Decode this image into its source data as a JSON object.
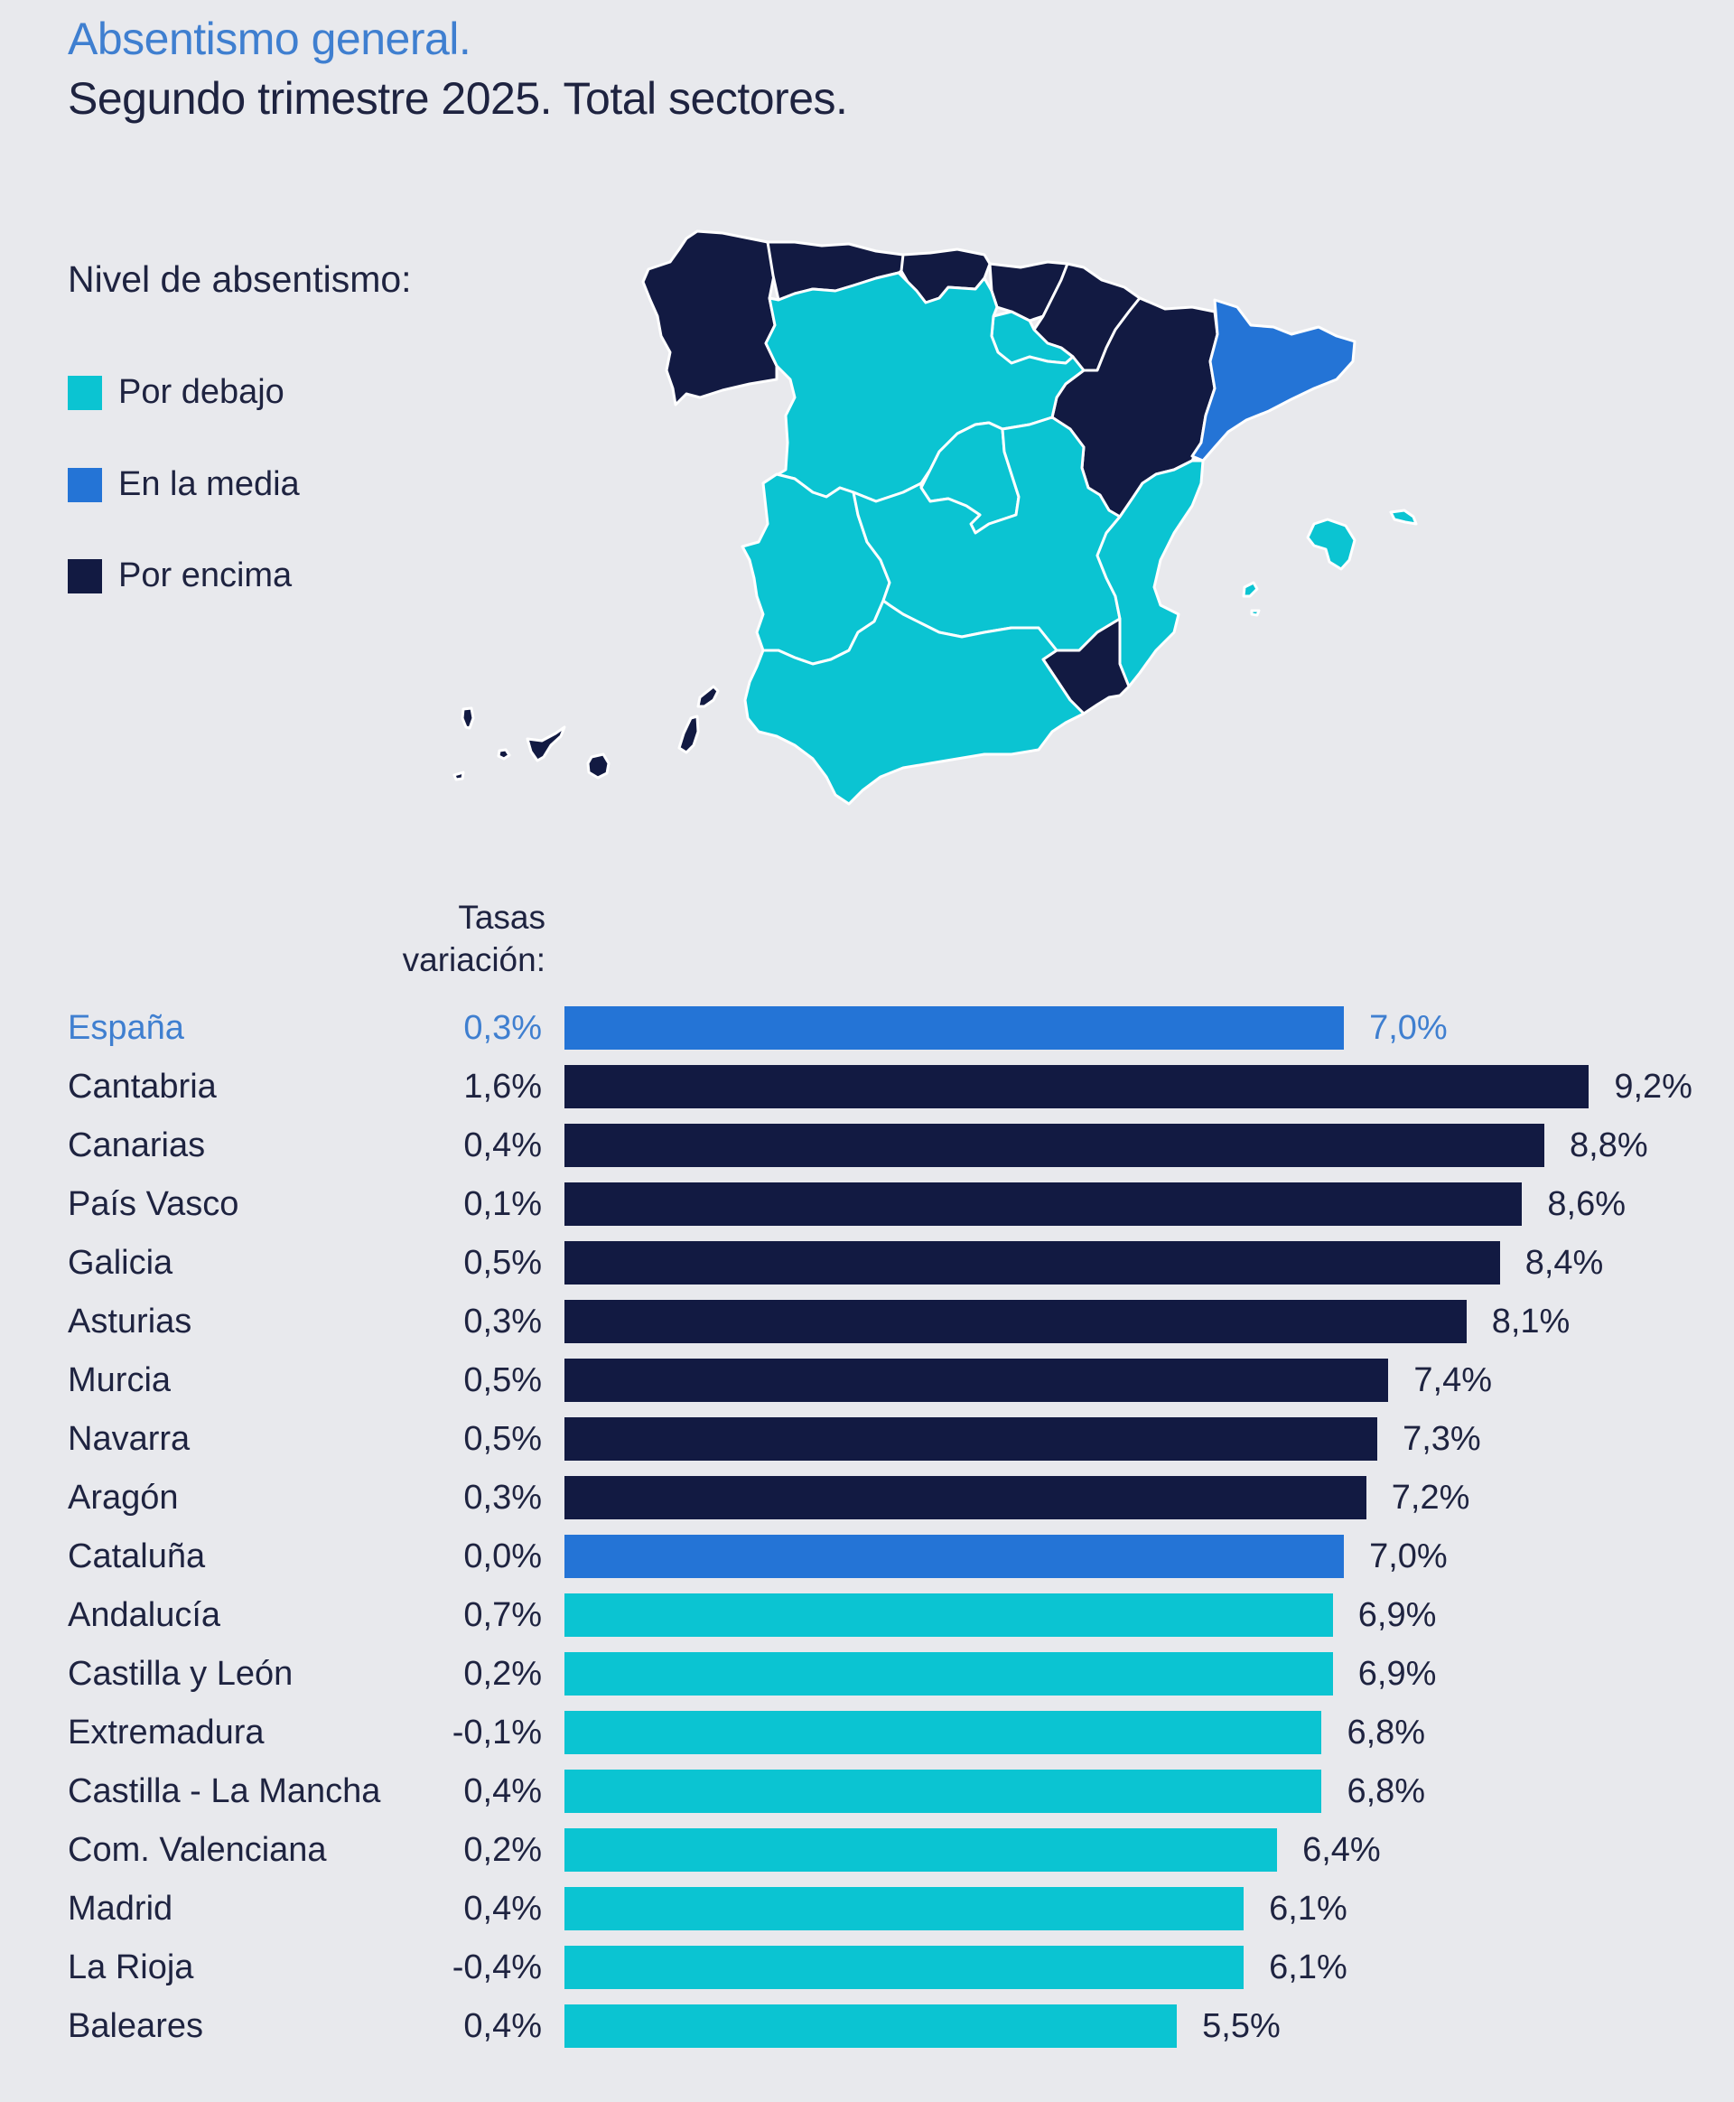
{
  "header": {
    "title": "Absentismo general.",
    "subtitle": "Segundo trimestre 2025. Total sectores."
  },
  "legend": {
    "title": "Nivel de absentismo:",
    "items": [
      {
        "key": "below",
        "label": "Por debajo",
        "color": "#0BC4D2"
      },
      {
        "key": "average",
        "label": "En la media",
        "color": "#2474D6"
      },
      {
        "key": "above",
        "label": "Por encima",
        "color": "#121A42"
      }
    ]
  },
  "colors": {
    "below": "#0BC4D2",
    "average": "#2474D6",
    "above": "#121A42",
    "highlight_text": "#3F7FD0",
    "background": "#E8E9ED"
  },
  "map": {
    "regions": [
      {
        "name": "Galicia",
        "level": "above"
      },
      {
        "name": "Asturias",
        "level": "above"
      },
      {
        "name": "Cantabria",
        "level": "above"
      },
      {
        "name": "País Vasco",
        "level": "above"
      },
      {
        "name": "Navarra",
        "level": "above"
      },
      {
        "name": "Aragón",
        "level": "above"
      },
      {
        "name": "Cataluña",
        "level": "average"
      },
      {
        "name": "La Rioja",
        "level": "below"
      },
      {
        "name": "Castilla y León",
        "level": "below"
      },
      {
        "name": "Madrid",
        "level": "below"
      },
      {
        "name": "Castilla - La Mancha",
        "level": "below"
      },
      {
        "name": "Extremadura",
        "level": "below"
      },
      {
        "name": "Com. Valenciana",
        "level": "below"
      },
      {
        "name": "Andalucía",
        "level": "below"
      },
      {
        "name": "Murcia",
        "level": "above"
      },
      {
        "name": "Baleares",
        "level": "below"
      },
      {
        "name": "Canarias",
        "level": "above"
      }
    ]
  },
  "chart_data": {
    "type": "bar",
    "orientation": "horizontal",
    "title": "Absentismo general. Segundo trimestre 2025. Total sectores.",
    "variation_header": "Tasas variación:",
    "xlabel": "",
    "ylabel": "",
    "xlim": [
      0,
      9.2
    ],
    "grid": false,
    "legend_position": "top-left",
    "unit": "%",
    "rows": [
      {
        "region": "España",
        "rate": 7.0,
        "rate_label": "7,0%",
        "variation": 0.3,
        "variation_label": "0,3%",
        "level": "average",
        "highlight": true
      },
      {
        "region": "Cantabria",
        "rate": 9.2,
        "rate_label": "9,2%",
        "variation": 1.6,
        "variation_label": "1,6%",
        "level": "above"
      },
      {
        "region": "Canarias",
        "rate": 8.8,
        "rate_label": "8,8%",
        "variation": 0.4,
        "variation_label": "0,4%",
        "level": "above"
      },
      {
        "region": "País Vasco",
        "rate": 8.6,
        "rate_label": "8,6%",
        "variation": 0.1,
        "variation_label": "0,1%",
        "level": "above"
      },
      {
        "region": "Galicia",
        "rate": 8.4,
        "rate_label": "8,4%",
        "variation": 0.5,
        "variation_label": "0,5%",
        "level": "above"
      },
      {
        "region": "Asturias",
        "rate": 8.1,
        "rate_label": "8,1%",
        "variation": 0.3,
        "variation_label": "0,3%",
        "level": "above"
      },
      {
        "region": "Murcia",
        "rate": 7.4,
        "rate_label": "7,4%",
        "variation": 0.5,
        "variation_label": "0,5%",
        "level": "above"
      },
      {
        "region": "Navarra",
        "rate": 7.3,
        "rate_label": "7,3%",
        "variation": 0.5,
        "variation_label": "0,5%",
        "level": "above"
      },
      {
        "region": "Aragón",
        "rate": 7.2,
        "rate_label": "7,2%",
        "variation": 0.3,
        "variation_label": "0,3%",
        "level": "above"
      },
      {
        "region": "Cataluña",
        "rate": 7.0,
        "rate_label": "7,0%",
        "variation": 0.0,
        "variation_label": "0,0%",
        "level": "average"
      },
      {
        "region": "Andalucía",
        "rate": 6.9,
        "rate_label": "6,9%",
        "variation": 0.7,
        "variation_label": "0,7%",
        "level": "below"
      },
      {
        "region": "Castilla y León",
        "rate": 6.9,
        "rate_label": "6,9%",
        "variation": 0.2,
        "variation_label": "0,2%",
        "level": "below"
      },
      {
        "region": "Extremadura",
        "rate": 6.8,
        "rate_label": "6,8%",
        "variation": -0.1,
        "variation_label": "-0,1%",
        "level": "below"
      },
      {
        "region": "Castilla - La Mancha",
        "rate": 6.8,
        "rate_label": "6,8%",
        "variation": 0.4,
        "variation_label": "0,4%",
        "level": "below"
      },
      {
        "region": "Com. Valenciana",
        "rate": 6.4,
        "rate_label": "6,4%",
        "variation": 0.2,
        "variation_label": "0,2%",
        "level": "below"
      },
      {
        "region": "Madrid",
        "rate": 6.1,
        "rate_label": "6,1%",
        "variation": 0.4,
        "variation_label": "0,4%",
        "level": "below"
      },
      {
        "region": "La Rioja",
        "rate": 6.1,
        "rate_label": "6,1%",
        "variation": -0.4,
        "variation_label": "-0,4%",
        "level": "below"
      },
      {
        "region": "Baleares",
        "rate": 5.5,
        "rate_label": "5,5%",
        "variation": 0.4,
        "variation_label": "0,4%",
        "level": "below"
      }
    ]
  }
}
